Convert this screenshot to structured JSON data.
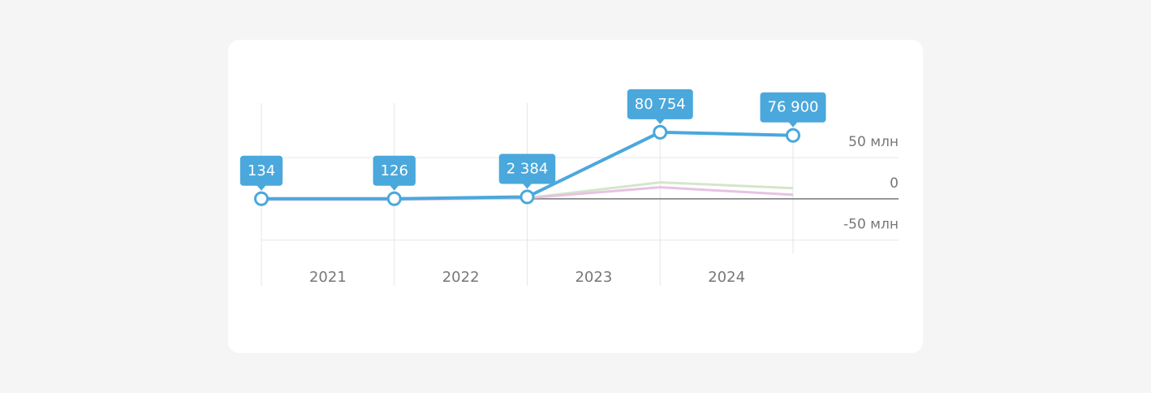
{
  "chart_data": {
    "type": "line",
    "categories": [
      "2021",
      "2022",
      "2023",
      "2024",
      null
    ],
    "series": [
      {
        "color": "#d5e5cb",
        "values": [
          0,
          0,
          1000,
          20000,
          13000
        ]
      },
      {
        "color": "#e6c3e2",
        "values": [
          -1000,
          -1000,
          1000,
          14000,
          5000
        ]
      },
      {
        "color": "#4aa8dc",
        "values": [
          134,
          126,
          2384,
          80754,
          76900
        ],
        "value_labels": [
          "134",
          "126",
          "2 384",
          "80 754",
          "76 900"
        ]
      }
    ],
    "ylim": [
      -66000,
      116000
    ],
    "yticks": [
      {
        "value": -50000,
        "label": "-50 млн"
      },
      0,
      {
        "value": 50000,
        "label": "50 млн"
      }
    ],
    "grid": true
  }
}
